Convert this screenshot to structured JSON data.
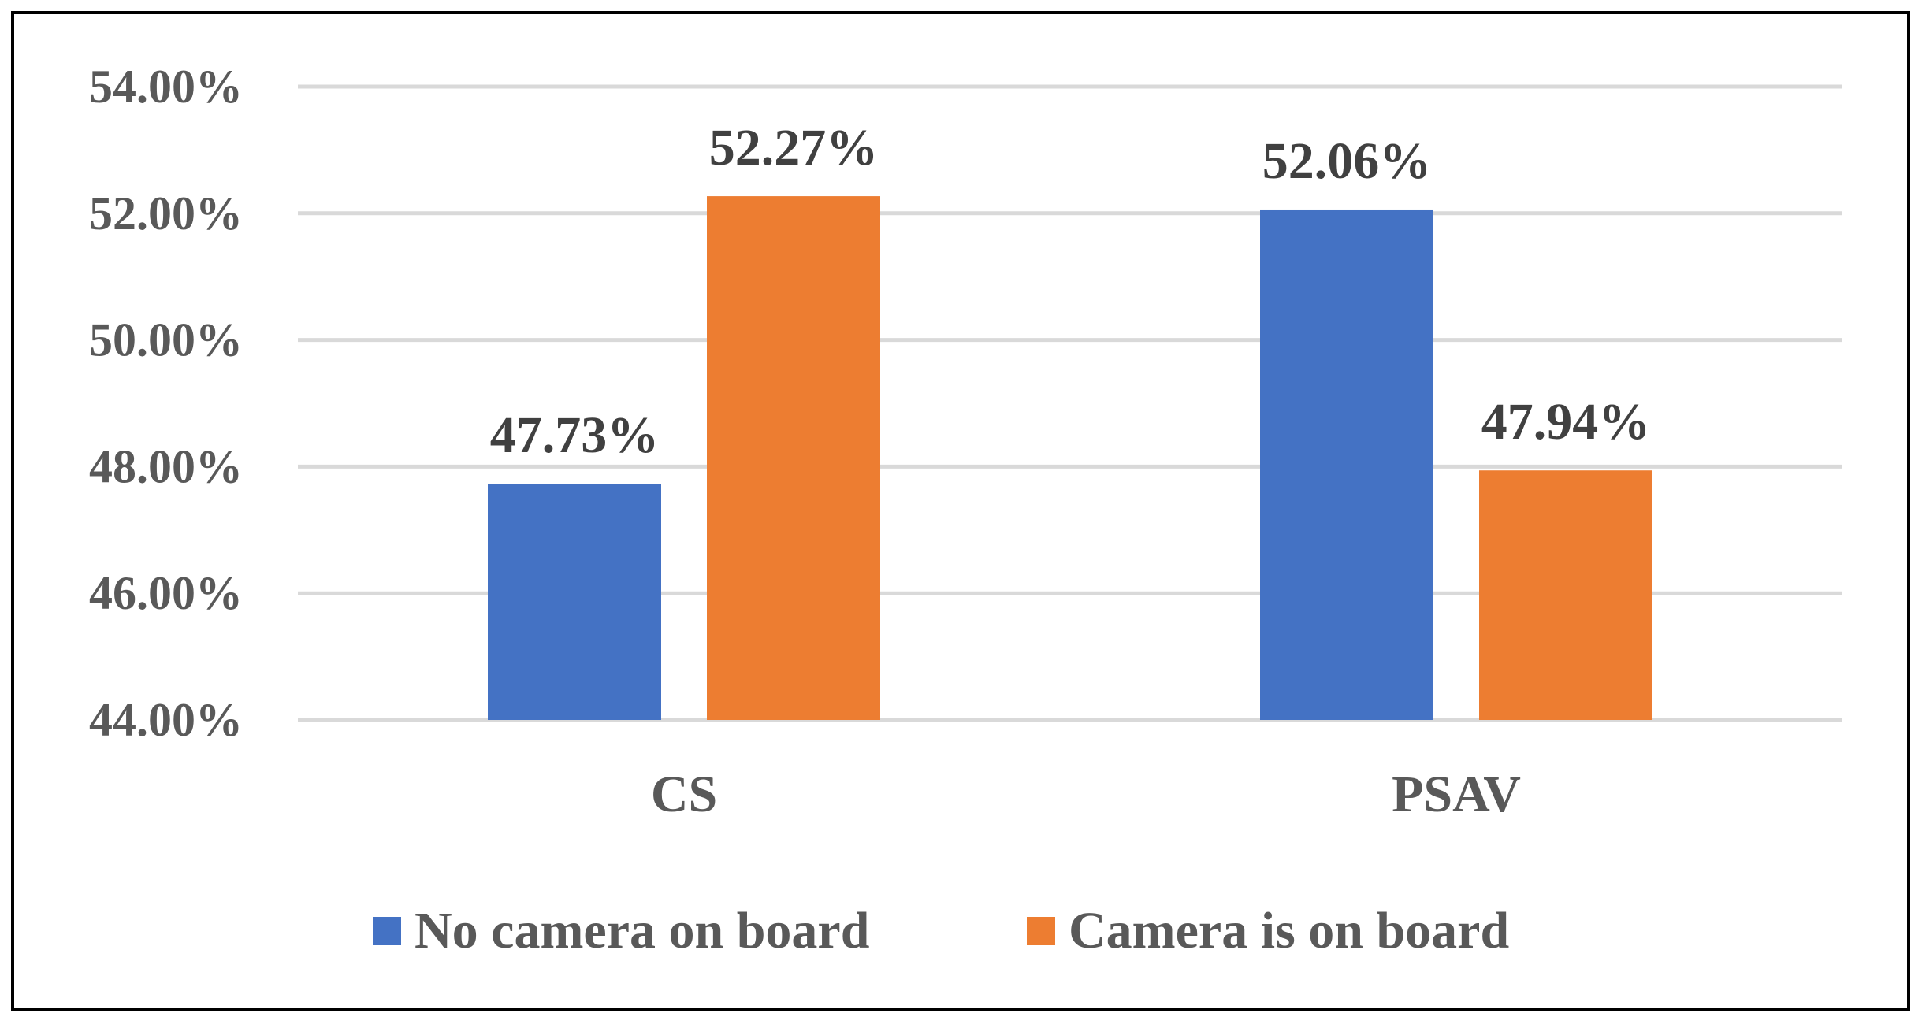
{
  "chart_data": {
    "type": "bar",
    "categories": [
      "CS",
      "PSAV"
    ],
    "series": [
      {
        "name": "No camera on board",
        "values": [
          47.73,
          52.06
        ],
        "labels": [
          "47.73%",
          "52.06%"
        ],
        "color": "#4472C4"
      },
      {
        "name": "Camera is on board",
        "values": [
          52.27,
          47.94
        ],
        "labels": [
          "52.27%",
          "47.94%"
        ],
        "color": "#ED7D31"
      }
    ],
    "ylim": [
      44,
      54
    ],
    "yticks": [
      44,
      46,
      48,
      50,
      52,
      54
    ],
    "ytick_labels": [
      "44.00%",
      "46.00%",
      "48.00%",
      "50.00%",
      "52.00%",
      "54.00%"
    ],
    "grid": true,
    "gridline_color": "#D9D9D9",
    "legend_position": "bottom",
    "title": "",
    "xlabel": "",
    "ylabel": ""
  }
}
